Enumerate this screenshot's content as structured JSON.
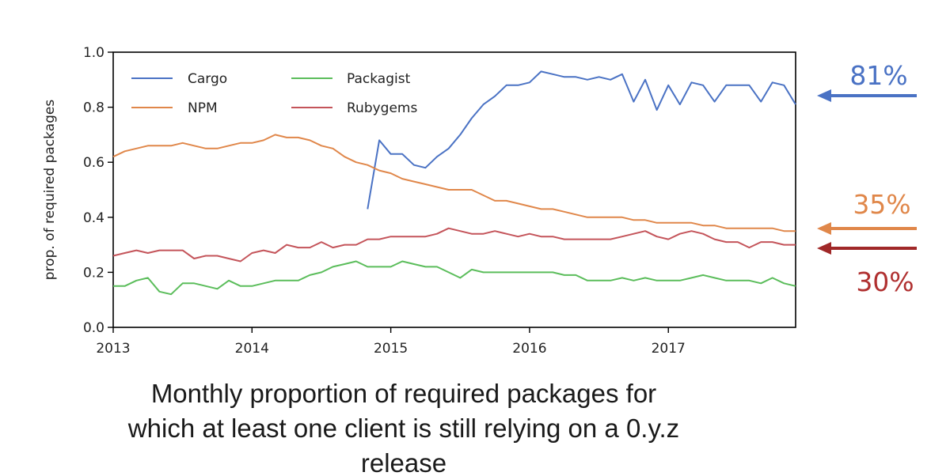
{
  "chart_data": {
    "type": "line",
    "ylabel": "prop. of required packages",
    "xlabel": "",
    "xlim": [
      2013.0,
      2017.917
    ],
    "ylim": [
      0.0,
      1.0
    ],
    "x_ticks": [
      2013,
      2014,
      2015,
      2016,
      2017
    ],
    "x_tick_labels": [
      "2013",
      "2014",
      "2015",
      "2016",
      "2017"
    ],
    "y_ticks": [
      0.0,
      0.2,
      0.4,
      0.6,
      0.8,
      1.0
    ],
    "y_tick_labels": [
      "0.0",
      "0.2",
      "0.4",
      "0.6",
      "0.8",
      "1.0"
    ],
    "legend_position": "upper-left",
    "series": [
      {
        "name": "Cargo",
        "color": "#4a72c4",
        "points": [
          [
            2014.833,
            0.43
          ],
          [
            2014.917,
            0.68
          ],
          [
            2015.0,
            0.63
          ],
          [
            2015.083,
            0.63
          ],
          [
            2015.167,
            0.59
          ],
          [
            2015.25,
            0.58
          ],
          [
            2015.333,
            0.62
          ],
          [
            2015.417,
            0.65
          ],
          [
            2015.5,
            0.7
          ],
          [
            2015.583,
            0.76
          ],
          [
            2015.667,
            0.81
          ],
          [
            2015.75,
            0.84
          ],
          [
            2015.833,
            0.88
          ],
          [
            2015.917,
            0.88
          ],
          [
            2016.0,
            0.89
          ],
          [
            2016.083,
            0.93
          ],
          [
            2016.167,
            0.92
          ],
          [
            2016.25,
            0.91
          ],
          [
            2016.333,
            0.91
          ],
          [
            2016.417,
            0.9
          ],
          [
            2016.5,
            0.91
          ],
          [
            2016.583,
            0.9
          ],
          [
            2016.667,
            0.92
          ],
          [
            2016.75,
            0.82
          ],
          [
            2016.833,
            0.9
          ],
          [
            2016.917,
            0.79
          ],
          [
            2017.0,
            0.88
          ],
          [
            2017.083,
            0.81
          ],
          [
            2017.167,
            0.89
          ],
          [
            2017.25,
            0.88
          ],
          [
            2017.333,
            0.82
          ],
          [
            2017.417,
            0.88
          ],
          [
            2017.5,
            0.88
          ],
          [
            2017.583,
            0.88
          ],
          [
            2017.667,
            0.82
          ],
          [
            2017.75,
            0.89
          ],
          [
            2017.833,
            0.88
          ],
          [
            2017.917,
            0.81
          ]
        ]
      },
      {
        "name": "NPM",
        "color": "#e0874a",
        "points": [
          [
            2013.0,
            0.62
          ],
          [
            2013.083,
            0.64
          ],
          [
            2013.167,
            0.65
          ],
          [
            2013.25,
            0.66
          ],
          [
            2013.333,
            0.66
          ],
          [
            2013.417,
            0.66
          ],
          [
            2013.5,
            0.67
          ],
          [
            2013.583,
            0.66
          ],
          [
            2013.667,
            0.65
          ],
          [
            2013.75,
            0.65
          ],
          [
            2013.833,
            0.66
          ],
          [
            2013.917,
            0.67
          ],
          [
            2014.0,
            0.67
          ],
          [
            2014.083,
            0.68
          ],
          [
            2014.167,
            0.7
          ],
          [
            2014.25,
            0.69
          ],
          [
            2014.333,
            0.69
          ],
          [
            2014.417,
            0.68
          ],
          [
            2014.5,
            0.66
          ],
          [
            2014.583,
            0.65
          ],
          [
            2014.667,
            0.62
          ],
          [
            2014.75,
            0.6
          ],
          [
            2014.833,
            0.59
          ],
          [
            2014.917,
            0.57
          ],
          [
            2015.0,
            0.56
          ],
          [
            2015.083,
            0.54
          ],
          [
            2015.167,
            0.53
          ],
          [
            2015.25,
            0.52
          ],
          [
            2015.333,
            0.51
          ],
          [
            2015.417,
            0.5
          ],
          [
            2015.5,
            0.5
          ],
          [
            2015.583,
            0.5
          ],
          [
            2015.667,
            0.48
          ],
          [
            2015.75,
            0.46
          ],
          [
            2015.833,
            0.46
          ],
          [
            2015.917,
            0.45
          ],
          [
            2016.0,
            0.44
          ],
          [
            2016.083,
            0.43
          ],
          [
            2016.167,
            0.43
          ],
          [
            2016.25,
            0.42
          ],
          [
            2016.333,
            0.41
          ],
          [
            2016.417,
            0.4
          ],
          [
            2016.5,
            0.4
          ],
          [
            2016.583,
            0.4
          ],
          [
            2016.667,
            0.4
          ],
          [
            2016.75,
            0.39
          ],
          [
            2016.833,
            0.39
          ],
          [
            2016.917,
            0.38
          ],
          [
            2017.0,
            0.38
          ],
          [
            2017.083,
            0.38
          ],
          [
            2017.167,
            0.38
          ],
          [
            2017.25,
            0.37
          ],
          [
            2017.333,
            0.37
          ],
          [
            2017.417,
            0.36
          ],
          [
            2017.5,
            0.36
          ],
          [
            2017.583,
            0.36
          ],
          [
            2017.667,
            0.36
          ],
          [
            2017.75,
            0.36
          ],
          [
            2017.833,
            0.35
          ],
          [
            2017.917,
            0.35
          ]
        ]
      },
      {
        "name": "Packagist",
        "color": "#5bbd5b",
        "points": [
          [
            2013.0,
            0.15
          ],
          [
            2013.083,
            0.15
          ],
          [
            2013.167,
            0.17
          ],
          [
            2013.25,
            0.18
          ],
          [
            2013.333,
            0.13
          ],
          [
            2013.417,
            0.12
          ],
          [
            2013.5,
            0.16
          ],
          [
            2013.583,
            0.16
          ],
          [
            2013.667,
            0.15
          ],
          [
            2013.75,
            0.14
          ],
          [
            2013.833,
            0.17
          ],
          [
            2013.917,
            0.15
          ],
          [
            2014.0,
            0.15
          ],
          [
            2014.083,
            0.16
          ],
          [
            2014.167,
            0.17
          ],
          [
            2014.25,
            0.17
          ],
          [
            2014.333,
            0.17
          ],
          [
            2014.417,
            0.19
          ],
          [
            2014.5,
            0.2
          ],
          [
            2014.583,
            0.22
          ],
          [
            2014.667,
            0.23
          ],
          [
            2014.75,
            0.24
          ],
          [
            2014.833,
            0.22
          ],
          [
            2014.917,
            0.22
          ],
          [
            2015.0,
            0.22
          ],
          [
            2015.083,
            0.24
          ],
          [
            2015.167,
            0.23
          ],
          [
            2015.25,
            0.22
          ],
          [
            2015.333,
            0.22
          ],
          [
            2015.417,
            0.2
          ],
          [
            2015.5,
            0.18
          ],
          [
            2015.583,
            0.21
          ],
          [
            2015.667,
            0.2
          ],
          [
            2015.75,
            0.2
          ],
          [
            2015.833,
            0.2
          ],
          [
            2015.917,
            0.2
          ],
          [
            2016.0,
            0.2
          ],
          [
            2016.083,
            0.2
          ],
          [
            2016.167,
            0.2
          ],
          [
            2016.25,
            0.19
          ],
          [
            2016.333,
            0.19
          ],
          [
            2016.417,
            0.17
          ],
          [
            2016.5,
            0.17
          ],
          [
            2016.583,
            0.17
          ],
          [
            2016.667,
            0.18
          ],
          [
            2016.75,
            0.17
          ],
          [
            2016.833,
            0.18
          ],
          [
            2016.917,
            0.17
          ],
          [
            2017.0,
            0.17
          ],
          [
            2017.083,
            0.17
          ],
          [
            2017.167,
            0.18
          ],
          [
            2017.25,
            0.19
          ],
          [
            2017.333,
            0.18
          ],
          [
            2017.417,
            0.17
          ],
          [
            2017.5,
            0.17
          ],
          [
            2017.583,
            0.17
          ],
          [
            2017.667,
            0.16
          ],
          [
            2017.75,
            0.18
          ],
          [
            2017.833,
            0.16
          ],
          [
            2017.917,
            0.15
          ]
        ]
      },
      {
        "name": "Rubygems",
        "color": "#c4545a",
        "points": [
          [
            2013.0,
            0.26
          ],
          [
            2013.083,
            0.27
          ],
          [
            2013.167,
            0.28
          ],
          [
            2013.25,
            0.27
          ],
          [
            2013.333,
            0.28
          ],
          [
            2013.417,
            0.28
          ],
          [
            2013.5,
            0.28
          ],
          [
            2013.583,
            0.25
          ],
          [
            2013.667,
            0.26
          ],
          [
            2013.75,
            0.26
          ],
          [
            2013.833,
            0.25
          ],
          [
            2013.917,
            0.24
          ],
          [
            2014.0,
            0.27
          ],
          [
            2014.083,
            0.28
          ],
          [
            2014.167,
            0.27
          ],
          [
            2014.25,
            0.3
          ],
          [
            2014.333,
            0.29
          ],
          [
            2014.417,
            0.29
          ],
          [
            2014.5,
            0.31
          ],
          [
            2014.583,
            0.29
          ],
          [
            2014.667,
            0.3
          ],
          [
            2014.75,
            0.3
          ],
          [
            2014.833,
            0.32
          ],
          [
            2014.917,
            0.32
          ],
          [
            2015.0,
            0.33
          ],
          [
            2015.083,
            0.33
          ],
          [
            2015.167,
            0.33
          ],
          [
            2015.25,
            0.33
          ],
          [
            2015.333,
            0.34
          ],
          [
            2015.417,
            0.36
          ],
          [
            2015.5,
            0.35
          ],
          [
            2015.583,
            0.34
          ],
          [
            2015.667,
            0.34
          ],
          [
            2015.75,
            0.35
          ],
          [
            2015.833,
            0.34
          ],
          [
            2015.917,
            0.33
          ],
          [
            2016.0,
            0.34
          ],
          [
            2016.083,
            0.33
          ],
          [
            2016.167,
            0.33
          ],
          [
            2016.25,
            0.32
          ],
          [
            2016.333,
            0.32
          ],
          [
            2016.417,
            0.32
          ],
          [
            2016.5,
            0.32
          ],
          [
            2016.583,
            0.32
          ],
          [
            2016.667,
            0.33
          ],
          [
            2016.75,
            0.34
          ],
          [
            2016.833,
            0.35
          ],
          [
            2016.917,
            0.33
          ],
          [
            2017.0,
            0.32
          ],
          [
            2017.083,
            0.34
          ],
          [
            2017.167,
            0.35
          ],
          [
            2017.25,
            0.34
          ],
          [
            2017.333,
            0.32
          ],
          [
            2017.417,
            0.31
          ],
          [
            2017.5,
            0.31
          ],
          [
            2017.583,
            0.29
          ],
          [
            2017.667,
            0.31
          ],
          [
            2017.75,
            0.31
          ],
          [
            2017.833,
            0.3
          ],
          [
            2017.917,
            0.3
          ]
        ]
      }
    ]
  },
  "annotations": [
    {
      "text": "81%",
      "color": "#4a72c4",
      "arrow_color": "#4a72c4",
      "series": "Cargo"
    },
    {
      "text": "35%",
      "color": "#e0874a",
      "arrow_color": "#e0874a",
      "series": "NPM"
    },
    {
      "text": "30%",
      "color": "#b03030",
      "arrow_color": "#a02828",
      "series": "Rubygems"
    }
  ],
  "caption": {
    "line1": "Monthly proportion of required packages for",
    "line2": "which at least one client is still relying on a 0.y.z",
    "line3": "release"
  }
}
